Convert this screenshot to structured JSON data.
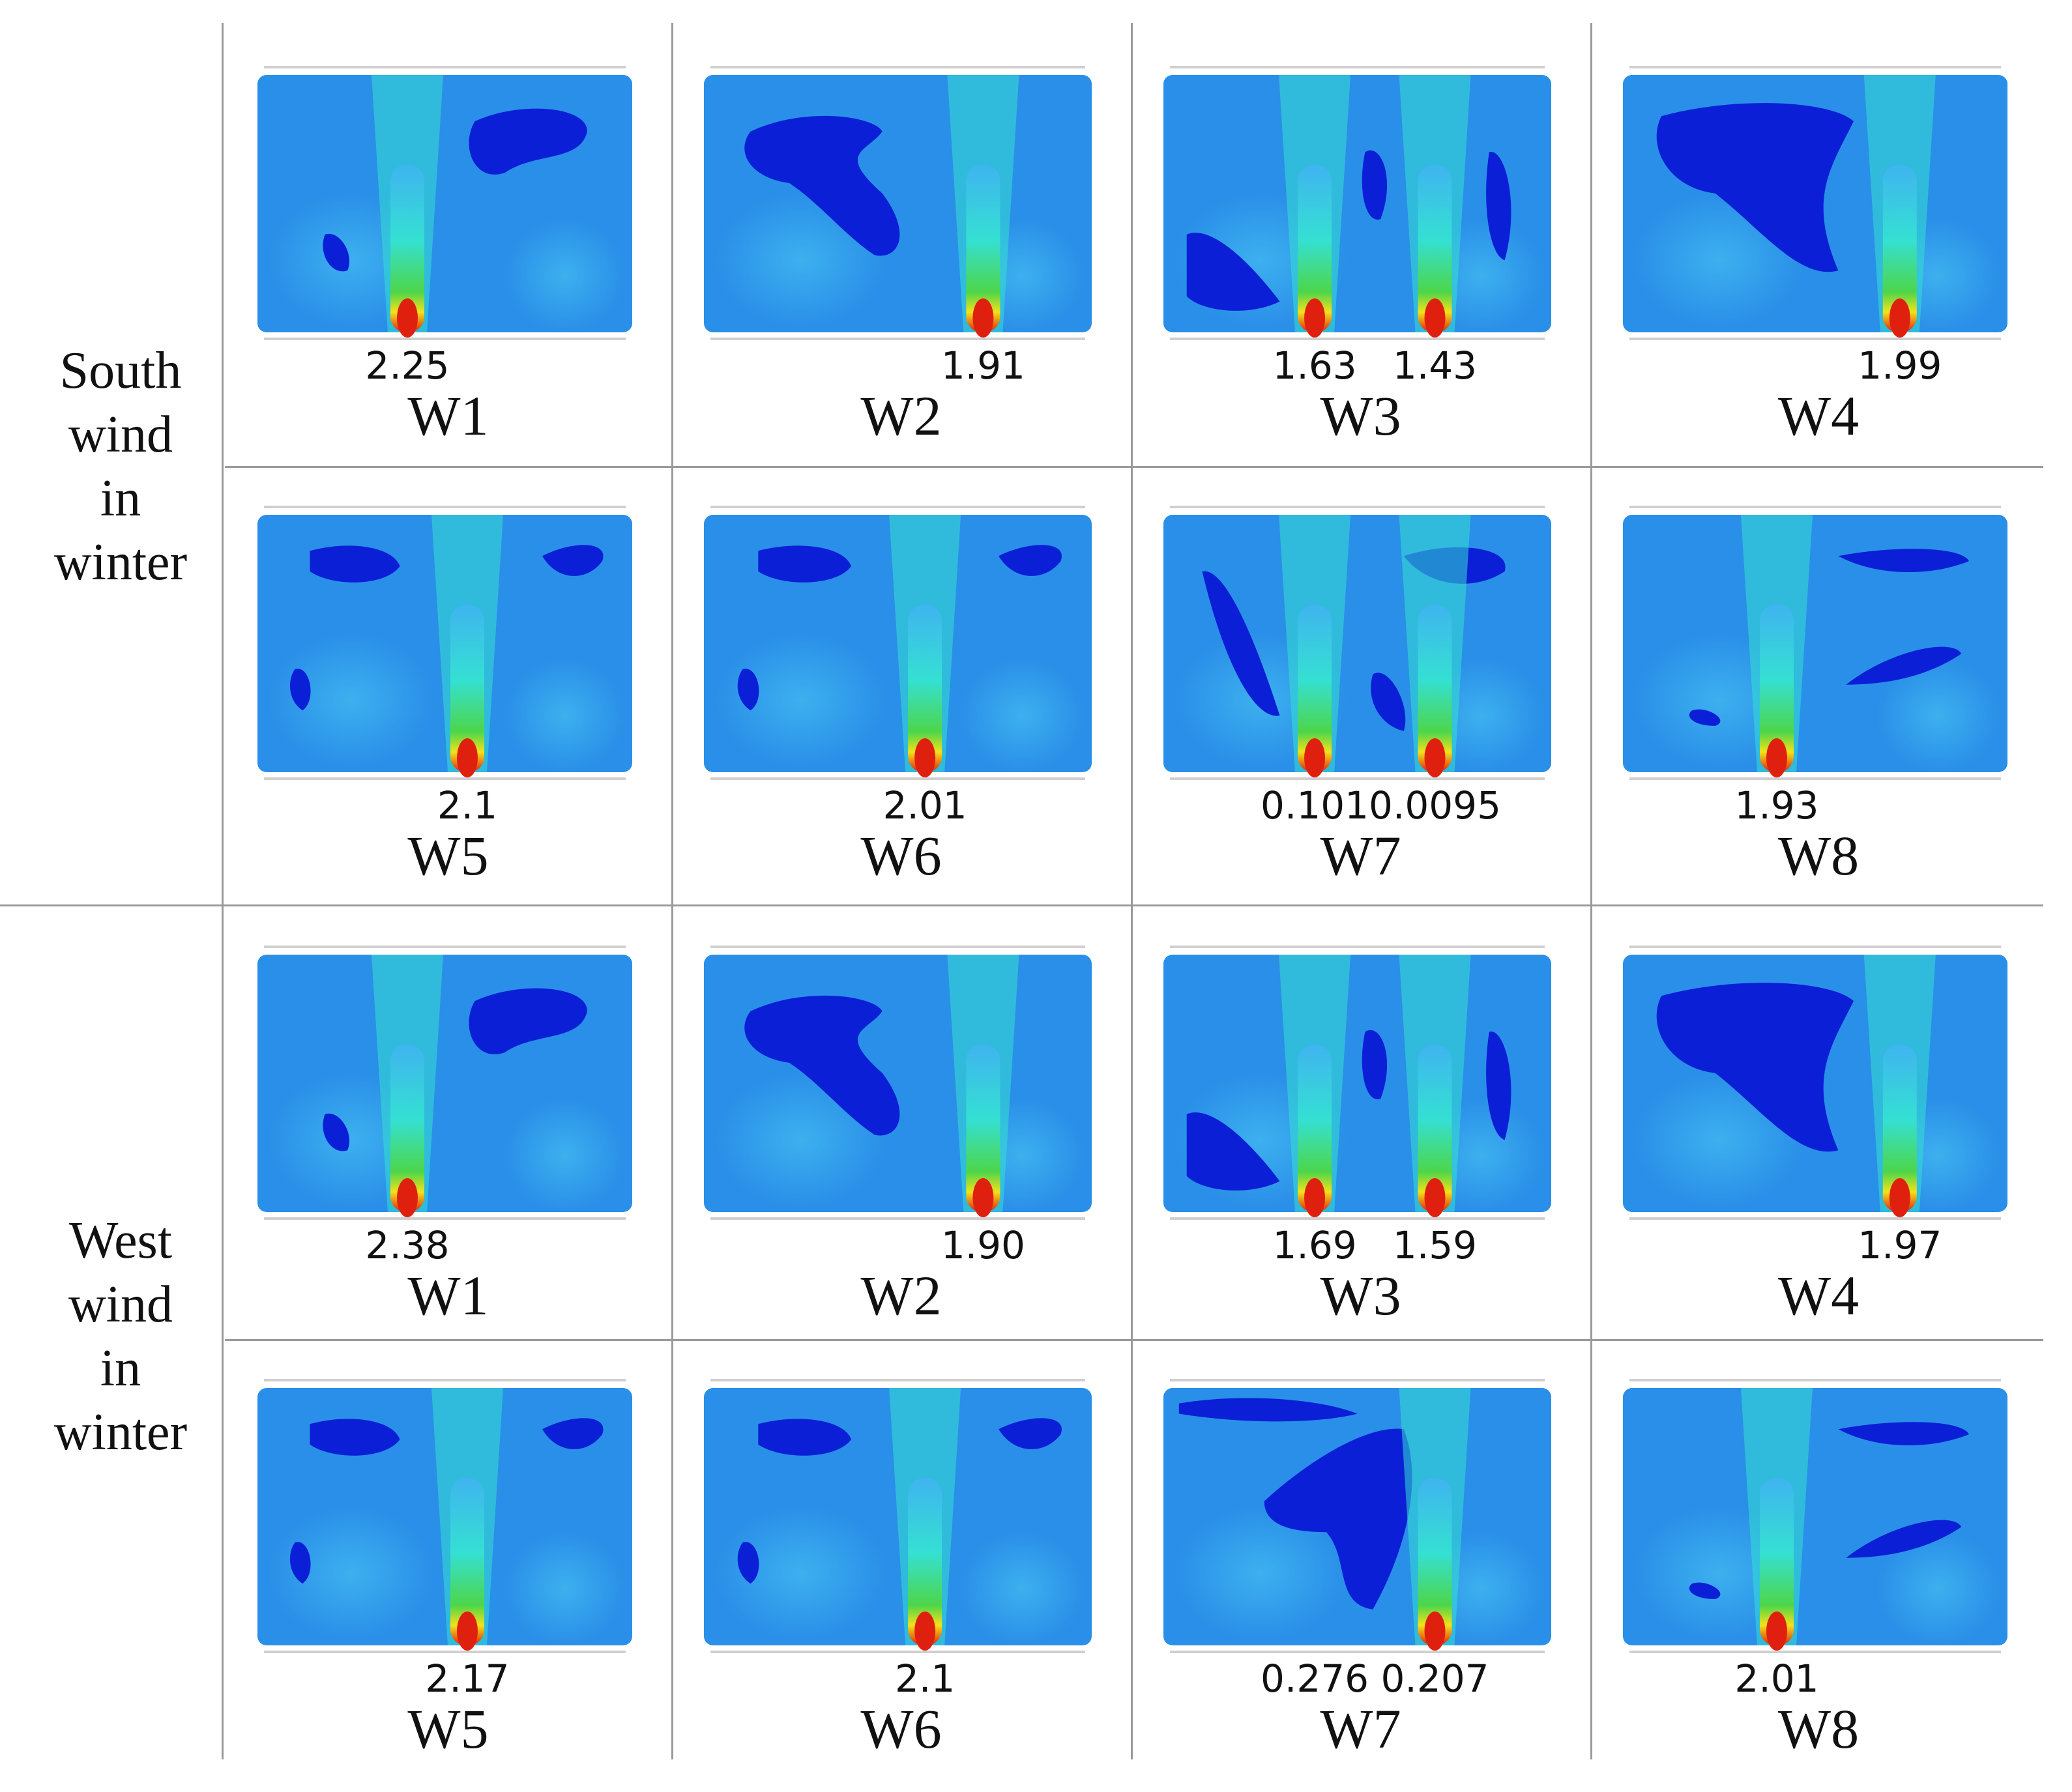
{
  "groups": [
    {
      "label_lines": [
        "South",
        "wind",
        "in",
        "winter"
      ],
      "panels": [
        {
          "case": "W1",
          "values": [
            "2.25"
          ],
          "jets": [
            0.4
          ],
          "blobs": "a"
        },
        {
          "case": "W2",
          "values": [
            "1.91"
          ],
          "jets": [
            0.72
          ],
          "blobs": "b"
        },
        {
          "case": "W3",
          "values": [
            "1.63",
            "1.43"
          ],
          "jets": [
            0.39,
            0.7
          ],
          "blobs": "c"
        },
        {
          "case": "W4",
          "values": [
            "1.99"
          ],
          "jets": [
            0.72
          ],
          "blobs": "d"
        },
        {
          "case": "W5",
          "values": [
            "2.1"
          ],
          "jets": [
            0.56
          ],
          "blobs": "e"
        },
        {
          "case": "W6",
          "values": [
            "2.01"
          ],
          "jets": [
            0.57
          ],
          "blobs": "e"
        },
        {
          "case": "W7",
          "values": [
            "0.101",
            "0.0095"
          ],
          "jets": [
            0.39,
            0.7
          ],
          "blobs": "f"
        },
        {
          "case": "W8",
          "values": [
            "1.93"
          ],
          "jets": [
            0.4
          ],
          "blobs": "g"
        }
      ]
    },
    {
      "label_lines": [
        "West",
        "wind",
        "in",
        "winter"
      ],
      "panels": [
        {
          "case": "W1",
          "values": [
            "2.38"
          ],
          "jets": [
            0.4
          ],
          "blobs": "a"
        },
        {
          "case": "W2",
          "values": [
            "1.90"
          ],
          "jets": [
            0.72
          ],
          "blobs": "b"
        },
        {
          "case": "W3",
          "values": [
            "1.69",
            "1.59"
          ],
          "jets": [
            0.39,
            0.7
          ],
          "blobs": "c"
        },
        {
          "case": "W4",
          "values": [
            "1.97"
          ],
          "jets": [
            0.72
          ],
          "blobs": "d"
        },
        {
          "case": "W5",
          "values": [
            "2.17"
          ],
          "jets": [
            0.56
          ],
          "blobs": "e"
        },
        {
          "case": "W6",
          "values": [
            "2.1"
          ],
          "jets": [
            0.57
          ],
          "blobs": "e"
        },
        {
          "case": "W7",
          "values": [
            "0.276",
            "0.207"
          ],
          "jets": [
            0.7
          ],
          "blobs": "h"
        },
        {
          "case": "W8",
          "values": [
            "2.01"
          ],
          "jets": [
            0.4
          ],
          "blobs": "g"
        }
      ]
    }
  ],
  "colors": {
    "field_base": "#2a8fe8",
    "field_light": "#3fb4f0",
    "field_dark": "#0a1fd6",
    "jet_cyan": "#34e0d2",
    "jet_green": "#4dd64a",
    "jet_yellow": "#f2e21a",
    "jet_red": "#e0200e",
    "grid_line": "#9a9a9a"
  }
}
